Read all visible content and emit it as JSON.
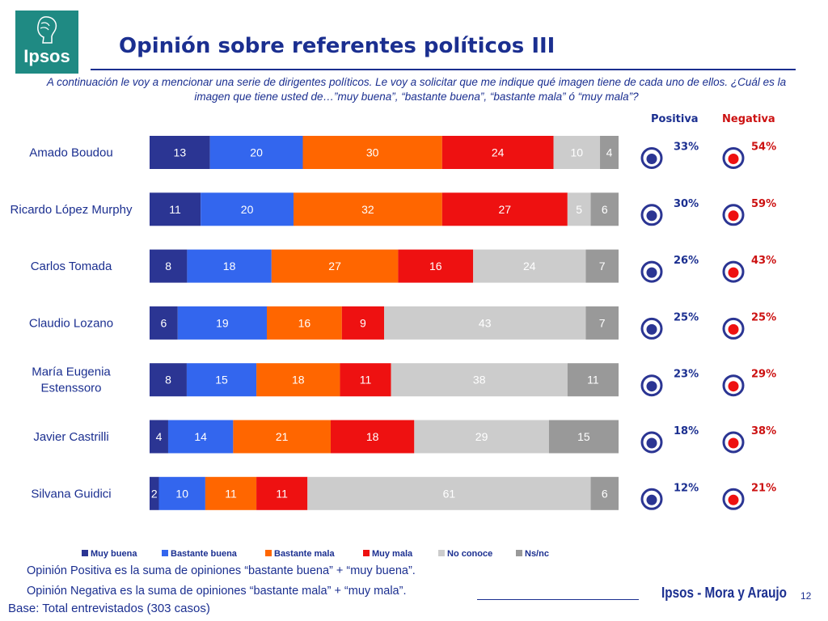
{
  "header": {
    "logo_text": "Ipsos",
    "title": "Opinión sobre referentes políticos III",
    "question": "A continuación le voy a mencionar  una serie de dirigentes políticos. Le voy a solicitar que me indique qué imagen tiene de cada uno de ellos. ¿Cuál es la imagen que tiene usted de…”muy buena”, “bastante buena”, “bastante mala” ó “muy mala”?"
  },
  "columns": {
    "positive": "Positiva",
    "negative": "Negativa"
  },
  "colors": {
    "Muy buena": "#2b3593",
    "Bastante buena": "#3366ee",
    "Bastante mala": "#ff6600",
    "Muy mala": "#ee1111",
    "No conoce": "#cccccc",
    "Ns/nc": "#999999",
    "positive_accent": "#1b2f90",
    "negative_accent": "#cc1111"
  },
  "chart_data": {
    "type": "bar",
    "orientation": "horizontal",
    "stacked": true,
    "categories": [
      "Amado Boudou",
      "Ricardo López Murphy",
      "Carlos Tomada",
      "Claudio Lozano",
      "María Eugenia Estenssoro",
      "Javier Castrilli",
      "Silvana Guidici"
    ],
    "series": [
      {
        "name": "Muy buena",
        "values": [
          13,
          11,
          8,
          6,
          8,
          4,
          2
        ]
      },
      {
        "name": "Bastante buena",
        "values": [
          20,
          20,
          18,
          19,
          15,
          14,
          10
        ]
      },
      {
        "name": "Bastante mala",
        "values": [
          30,
          32,
          27,
          16,
          18,
          21,
          11
        ]
      },
      {
        "name": "Muy mala",
        "values": [
          24,
          27,
          16,
          9,
          11,
          18,
          11
        ]
      },
      {
        "name": "No conoce",
        "values": [
          10,
          5,
          24,
          43,
          38,
          29,
          61
        ]
      },
      {
        "name": "Ns/nc",
        "values": [
          4,
          6,
          7,
          7,
          11,
          15,
          6
        ]
      }
    ],
    "positive": [
      "33%",
      "30%",
      "26%",
      "25%",
      "23%",
      "18%",
      "12%"
    ],
    "negative": [
      "54%",
      "59%",
      "43%",
      "25%",
      "29%",
      "38%",
      "21%"
    ],
    "legend_position": "bottom"
  },
  "footer": {
    "note_positive": "Opinión Positiva es la suma de opiniones “bastante buena” + “muy buena”.",
    "note_negative": "Opinión Negativa es la suma de opiniones “bastante mala” + “muy mala”.",
    "base": "Base: Total entrevistados (303 casos)",
    "brand": "Ipsos - Mora y Araujo",
    "page": "12"
  }
}
